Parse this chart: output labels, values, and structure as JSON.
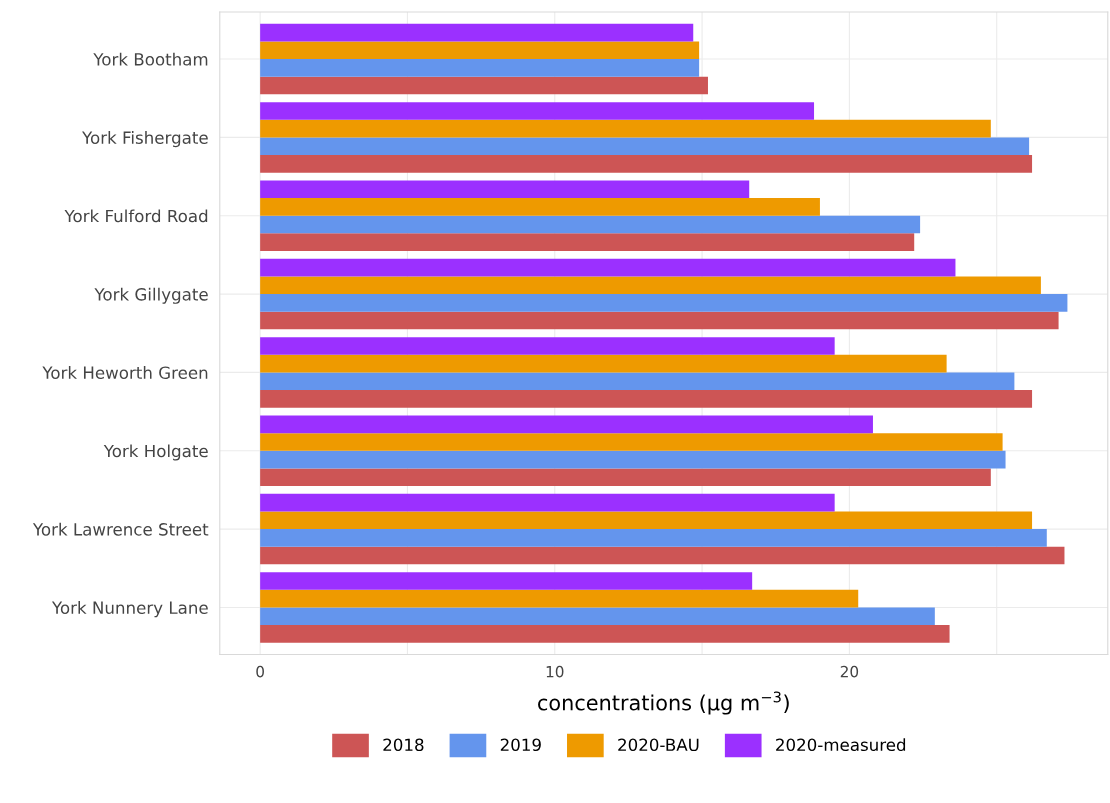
{
  "chart_data": {
    "type": "bar",
    "orientation": "horizontal",
    "xlabel": "concentrations (µg m$^{−3}$)",
    "categories": [
      "York Bootham",
      "York Fishergate",
      "York Fulford Road",
      "York Gillygate",
      "York Heworth Green",
      "York Holgate",
      "York Lawrence Street",
      "York Nunnery Lane"
    ],
    "series": [
      {
        "name": "2018",
        "color": "#cd5555",
        "values": [
          15.2,
          26.2,
          22.2,
          27.1,
          26.2,
          24.8,
          27.3,
          23.4
        ]
      },
      {
        "name": "2019",
        "color": "#6495ed",
        "values": [
          14.9,
          26.1,
          22.4,
          27.4,
          25.6,
          25.3,
          26.7,
          22.9
        ]
      },
      {
        "name": "2020-BAU",
        "color": "#ee9a00",
        "values": [
          14.9,
          24.8,
          19.0,
          26.5,
          23.3,
          25.2,
          26.2,
          20.3
        ]
      },
      {
        "name": "2020-measured",
        "color": "#9b30ff",
        "values": [
          14.7,
          18.8,
          16.6,
          23.6,
          19.5,
          20.8,
          19.5,
          16.7
        ]
      }
    ],
    "xlim": [
      -1.37,
      28.77
    ],
    "xticks": [
      0,
      {
        "value": 5,
        "label": null
      },
      10,
      {
        "value": 15,
        "label": null
      },
      20,
      {
        "value": 25,
        "label": null
      }
    ],
    "grid": true,
    "legend": "bottom"
  }
}
